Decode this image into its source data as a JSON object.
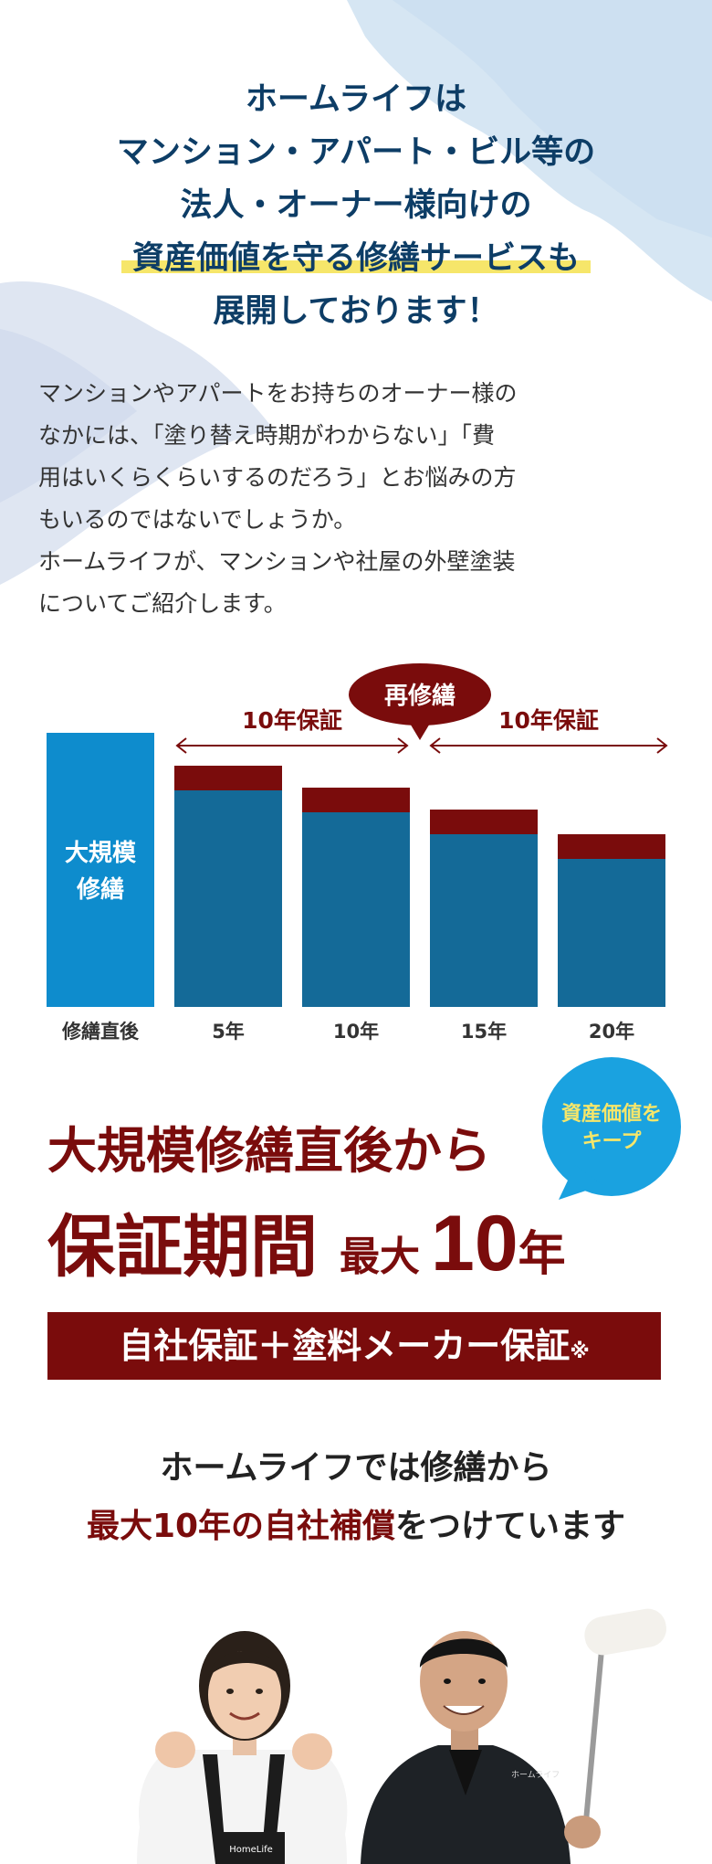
{
  "headline": {
    "line1": "ホームライフは",
    "line2": "マンション・アパート・ビル等の",
    "line3": "法人・オーナー様向けの",
    "line4": "資産価値を守る修繕サービスも",
    "line5": "展開しております！"
  },
  "intro": {
    "lines": [
      "マンションやアパートをお持ちのオーナー様の",
      "なかには、「塗り替え時期がわからない」「費",
      "用はいくらくらいするのだろう」とお悩みの方",
      "もいるのではないでしょうか。",
      "ホームライフが、マンションや社屋の外壁塗装",
      "についてご紹介します。"
    ]
  },
  "chart_data": {
    "type": "bar",
    "categories": [
      "修繕直後",
      "5年",
      "10年",
      "15年",
      "20年"
    ],
    "values": [
      100,
      88,
      80,
      72,
      63
    ],
    "deterioration": [
      0,
      9,
      9,
      9,
      9
    ],
    "first_bar_label_line1": "大規模",
    "first_bar_label_line2": "修繕",
    "warranty_left": "10年保証",
    "warranty_right": "10年保証",
    "repair_bubble": "再修繕",
    "colors": {
      "first": "#0e8ccd",
      "bar": "#146a98",
      "top": "#7a0c0c",
      "arrow": "#7a0c0c"
    }
  },
  "catch": {
    "line1": "大規模修繕直後から",
    "big": "保証期間",
    "mid": "最大",
    "num": "10",
    "unit": "年"
  },
  "badge": {
    "line1": "資産価値を",
    "line2": "キープ",
    "color": "#1aa2e0"
  },
  "banner": {
    "text": "自社保証＋塗料メーカー保証",
    "note": "※"
  },
  "sub": {
    "line1": "ホームライフでは修繕から",
    "line2_red": "最大10年の自社補償",
    "line2_dark": "をつけています"
  },
  "photo": {
    "apron_text": "HomeLife",
    "jacket_text": "ホームライフ"
  }
}
